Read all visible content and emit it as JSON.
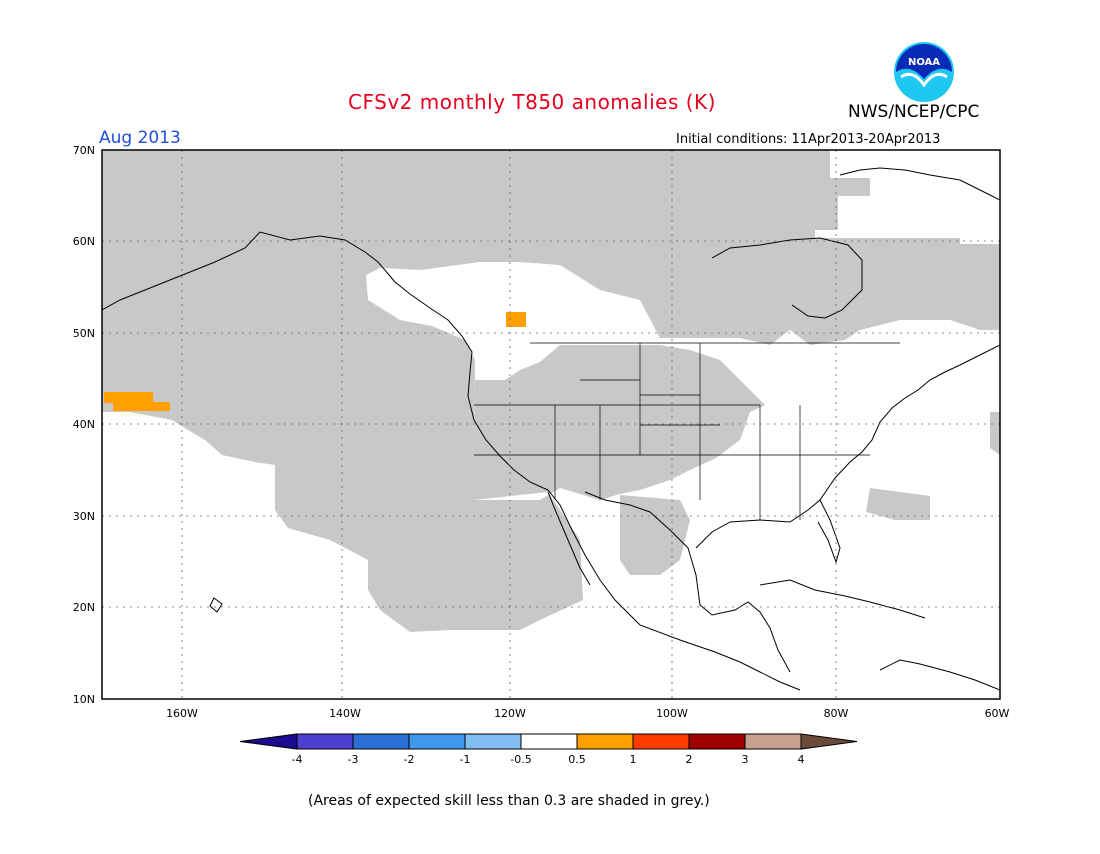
{
  "title": "CFSv2 monthly T850 anomalies (K)",
  "valid_month": "Aug 2013",
  "initial_conditions": "Initial conditions: 11Apr2013-20Apr2013",
  "agency": "NWS/NCEP/CPC",
  "logo_text": "NOAA",
  "footnote": "(Areas of expected skill less than 0.3 are shaded in grey.)",
  "map": {
    "lon_range": [
      -172,
      -60
    ],
    "lat_range": [
      10,
      70
    ],
    "lat_labels": [
      "70N",
      "60N",
      "50N",
      "40N",
      "30N",
      "20N",
      "10N"
    ],
    "lon_labels": [
      "160W",
      "140W",
      "120W",
      "100W",
      "80W",
      "60W"
    ]
  },
  "legend": {
    "ticks": [
      "-4",
      "-3",
      "-2",
      "-1",
      "-0.5",
      "0.5",
      "1",
      "2",
      "3",
      "4"
    ],
    "colors": [
      "#1a0c8c",
      "#4c3fd3",
      "#2a6fd6",
      "#3f98ee",
      "#7fbdf2",
      "#ffffff",
      "#ffa000",
      "#ff3c00",
      "#a00000",
      "#c8a090",
      "#6b4a3a"
    ]
  }
}
